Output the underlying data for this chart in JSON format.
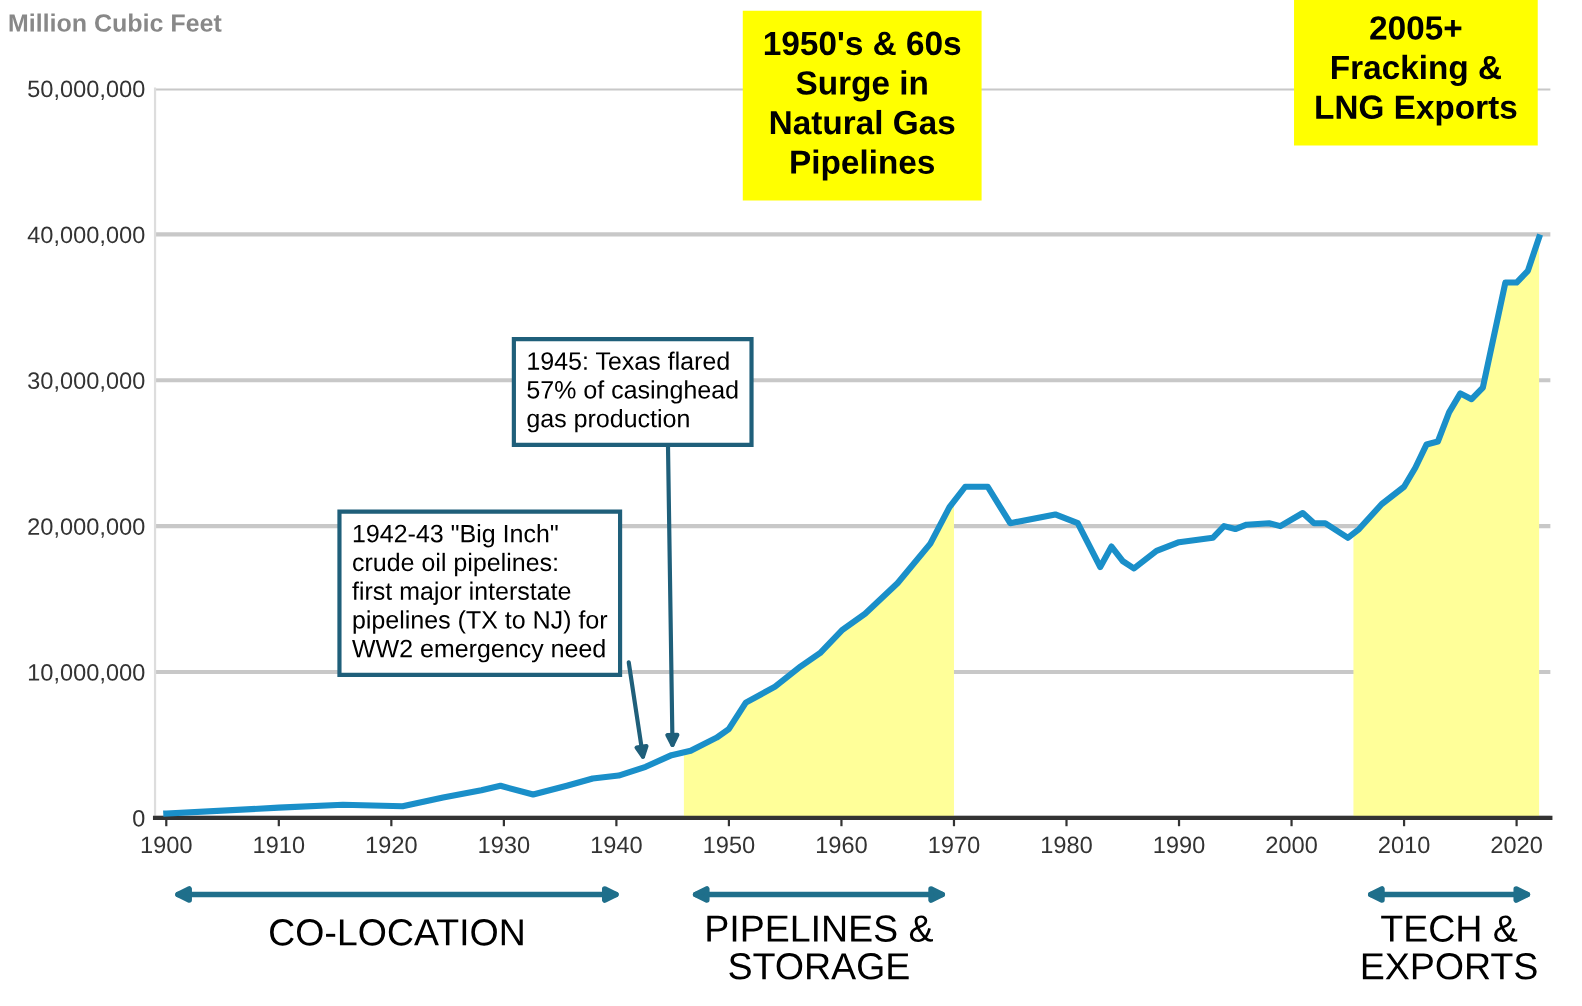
{
  "chart_data": {
    "type": "line",
    "ylabel": "Million Cubic Feet",
    "x": [
      1900,
      1910,
      1915.7,
      1921,
      1924.6,
      1928,
      1929.7,
      1932.6,
      1935.6,
      1937.9,
      1940.2,
      1942.6,
      1944.9,
      1946.6,
      1948.9,
      1950,
      1951.5,
      1954.1,
      1956.4,
      1958.1,
      1960.1,
      1962.1,
      1965,
      1967.9,
      1969.6,
      1971,
      1973,
      1975,
      1979,
      1981,
      1983,
      1984,
      1985,
      1986,
      1988,
      1990,
      1993,
      1994,
      1995,
      1996,
      1998,
      1999,
      2001,
      2002,
      2003,
      2005,
      2006,
      2008,
      2010,
      2011,
      2012,
      2013,
      2014,
      2015,
      2016,
      2017,
      2019,
      2020,
      2021,
      2022
    ],
    "series": [
      {
        "type": "area",
        "color": "#ffff99",
        "x": [
          1946,
          1946.6,
          1948.9,
          1950,
          1951.5,
          1954.1,
          1956.4,
          1958.1,
          1960.1,
          1962.1,
          1965,
          1967.9,
          1969.6,
          1970
        ],
        "values": [
          4500000,
          4600000,
          5500000,
          6100000,
          7900000,
          9000000,
          10400000,
          11300000,
          12900000,
          14000000,
          16100000,
          18800000,
          21300000,
          21800000
        ]
      },
      {
        "type": "area",
        "color": "#ffff99",
        "x": [
          2005.5,
          2006,
          2008,
          2010,
          2011,
          2012,
          2013,
          2014,
          2015,
          2016,
          2017,
          2019,
          2020,
          2021,
          2022
        ],
        "values": [
          19500000,
          19800000,
          21500000,
          22700000,
          24000000,
          25600000,
          25800000,
          27800000,
          29100000,
          28700000,
          29500000,
          36700000,
          36700000,
          37500000,
          39800000
        ]
      },
      {
        "color": "#1a8fc9",
        "values": [
          300000,
          700000,
          900000,
          800000,
          1400000,
          1900000,
          2200000,
          1600000,
          2200000,
          2700000,
          2900000,
          3500000,
          4300000,
          4600000,
          5500000,
          6100000,
          7900000,
          9000000,
          10400000,
          11300000,
          12900000,
          14000000,
          16100000,
          18800000,
          21300000,
          22700000,
          22700000,
          20200000,
          20800000,
          20200000,
          17200000,
          18600000,
          17600000,
          17100000,
          18300000,
          18900000,
          19200000,
          20000000,
          19800000,
          20100000,
          20200000,
          20000000,
          20900000,
          20200000,
          20200000,
          19200000,
          19800000,
          21500000,
          22700000,
          24000000,
          25600000,
          25800000,
          27800000,
          29100000,
          28700000,
          29500000,
          36700000,
          36700000,
          37500000,
          39800000
        ]
      }
    ],
    "annotations": [
      "1950's & 60s\nSurge in\nNatural Gas\nPipelines",
      "2005+\nFracking &\nLNG Exports",
      {
        "text": "1942-43 \"Big Inch\"\ncrude oil pipelines:\nfirst major interstate\npipelines (TX to NJ) for\nWW2 emergency need",
        "x": 1942.5,
        "y": 3500000
      },
      {
        "text": "1945: Texas flared\n57% of casinghead\ngas production",
        "x": 1945,
        "y": 4300000
      },
      "CO-LOCATION",
      "PIPELINES &\nSTORAGE",
      "TECH &\nEXPORTS"
    ],
    "xlim": [
      1899,
      2023
    ],
    "xticks": [
      1900,
      1910,
      1920,
      1930,
      1940,
      1950,
      1960,
      1970,
      1980,
      1990,
      2000,
      2010,
      2020
    ],
    "ylim": [
      0,
      50000000
    ],
    "yticks": [
      {
        "value": 0,
        "label": "0"
      },
      {
        "value": 10000000,
        "label": "10,000,000"
      },
      {
        "value": 20000000,
        "label": "20,000,000"
      },
      {
        "value": 30000000,
        "label": "30,000,000"
      },
      {
        "value": 40000000,
        "label": "40,000,000"
      },
      {
        "value": 50000000,
        "label": "50,000,000"
      }
    ],
    "grid": "y",
    "legend": false
  }
}
